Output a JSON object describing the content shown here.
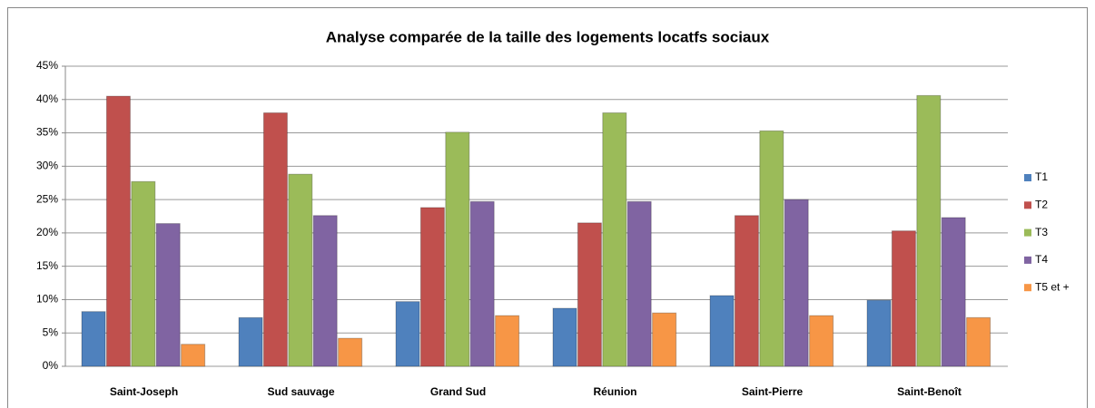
{
  "chart_data": {
    "type": "bar",
    "title": "Analyse comparée de la taille des logements locatfs sociaux",
    "categories": [
      "Saint-Joseph",
      "Sud sauvage",
      "Grand Sud",
      "Réunion",
      "Saint-Pierre",
      "Saint-Benoît"
    ],
    "series": [
      {
        "name": "T1",
        "color": "#4f81bd",
        "values": [
          8.2,
          7.3,
          9.7,
          8.7,
          10.6,
          9.9
        ]
      },
      {
        "name": "T2",
        "color": "#c0504d",
        "values": [
          40.5,
          38.0,
          23.8,
          21.5,
          22.6,
          20.3
        ]
      },
      {
        "name": "T3",
        "color": "#9bbb59",
        "values": [
          27.7,
          28.8,
          35.1,
          38.0,
          35.3,
          40.6
        ]
      },
      {
        "name": "T4",
        "color": "#8064a2",
        "values": [
          21.4,
          22.6,
          24.7,
          24.7,
          25.0,
          22.3
        ]
      },
      {
        "name": "T5 et +",
        "color": "#f79646",
        "values": [
          3.3,
          4.2,
          7.6,
          8.0,
          7.6,
          7.3
        ]
      }
    ],
    "ylim": [
      0,
      45
    ],
    "yticks": [
      {
        "value": 0,
        "label": "0%"
      },
      {
        "value": 5,
        "label": "5%"
      },
      {
        "value": 10,
        "label": "10%"
      },
      {
        "value": 15,
        "label": "15%"
      },
      {
        "value": 20,
        "label": "20%"
      },
      {
        "value": 25,
        "label": "25%"
      },
      {
        "value": 30,
        "label": "30%"
      },
      {
        "value": 35,
        "label": "35%"
      },
      {
        "value": 40,
        "label": "40%"
      },
      {
        "value": 45,
        "label": "45%"
      }
    ],
    "grid": true,
    "legend": "right"
  }
}
